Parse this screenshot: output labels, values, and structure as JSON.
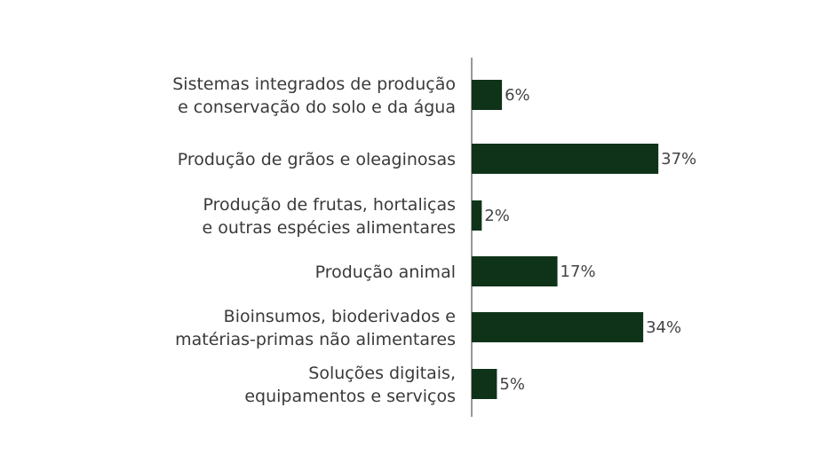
{
  "chart_data": {
    "type": "bar",
    "orientation": "horizontal",
    "categories": [
      [
        "Sistemas integrados de produção",
        "e conservação do solo e da água"
      ],
      [
        "Produção de grãos e oleaginosas"
      ],
      [
        "Produção de frutas, hortaliças",
        "e outras espécies alimentares"
      ],
      [
        "Produção animal"
      ],
      [
        "Bioinsumos, bioderivados e",
        "matérias-primas não alimentares"
      ],
      [
        "Soluções digitais,",
        "equipamentos e serviços"
      ]
    ],
    "values": [
      6,
      37,
      2,
      17,
      34,
      5
    ],
    "value_labels": [
      "6%",
      "37%",
      "2%",
      "17%",
      "34%",
      "5%"
    ],
    "unit": "%",
    "grid": false,
    "legend": "none",
    "bar_color": "#0f3319",
    "axis_color": "#777777"
  }
}
